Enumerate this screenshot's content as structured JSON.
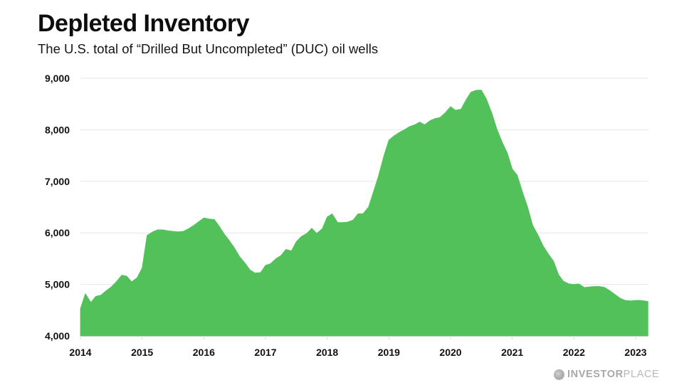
{
  "header": {
    "title": "Depleted Inventory",
    "subtitle": "The U.S. total of “Drilled But Uncompleted” (DUC) oil wells"
  },
  "watermark": {
    "icon": "globe-logo-icon",
    "brand_bold": "INVESTOR",
    "brand_light": "PLACE"
  },
  "colors": {
    "area_fill": "#52c15a",
    "gridline": "#e6e6e6",
    "text": "#111111"
  },
  "chart_data": {
    "type": "area",
    "title": "Depleted Inventory",
    "subtitle": "The U.S. total of “Drilled But Uncompleted” (DUC) oil wells",
    "xlabel": "",
    "ylabel": "",
    "xlim": [
      2014.0,
      2023.2
    ],
    "ylim": [
      4000,
      9000
    ],
    "grid": true,
    "legend": "none",
    "x_ticks": [
      2014,
      2015,
      2016,
      2017,
      2018,
      2019,
      2020,
      2021,
      2022,
      2023
    ],
    "x_tick_labels": [
      "2014",
      "2015",
      "2016",
      "2017",
      "2018",
      "2019",
      "2020",
      "2021",
      "2022",
      "2023"
    ],
    "y_ticks": [
      4000,
      5000,
      6000,
      7000,
      8000,
      9000
    ],
    "y_tick_labels": [
      "4,000",
      "5,000",
      "6,000",
      "7,000",
      "8,000",
      "9,000"
    ],
    "series": [
      {
        "name": "DUC oil wells",
        "x": [
          2014.0,
          2014.08,
          2014.17,
          2014.25,
          2014.33,
          2014.42,
          2014.5,
          2014.58,
          2014.67,
          2014.75,
          2014.83,
          2014.92,
          2015.0,
          2015.08,
          2015.17,
          2015.25,
          2015.33,
          2015.42,
          2015.5,
          2015.58,
          2015.67,
          2015.75,
          2015.83,
          2015.92,
          2016.0,
          2016.08,
          2016.17,
          2016.25,
          2016.33,
          2016.42,
          2016.5,
          2016.58,
          2016.67,
          2016.75,
          2016.83,
          2016.92,
          2017.0,
          2017.08,
          2017.17,
          2017.25,
          2017.33,
          2017.42,
          2017.5,
          2017.58,
          2017.67,
          2017.75,
          2017.83,
          2017.92,
          2018.0,
          2018.08,
          2018.17,
          2018.25,
          2018.33,
          2018.42,
          2018.5,
          2018.58,
          2018.67,
          2018.75,
          2018.83,
          2018.92,
          2019.0,
          2019.08,
          2019.17,
          2019.25,
          2019.33,
          2019.42,
          2019.5,
          2019.58,
          2019.67,
          2019.75,
          2019.83,
          2019.92,
          2020.0,
          2020.08,
          2020.17,
          2020.25,
          2020.33,
          2020.42,
          2020.5,
          2020.58,
          2020.67,
          2020.75,
          2020.83,
          2020.92,
          2021.0,
          2021.08,
          2021.17,
          2021.25,
          2021.33,
          2021.42,
          2021.5,
          2021.58,
          2021.67,
          2021.75,
          2021.83,
          2021.92,
          2022.0,
          2022.08,
          2022.17,
          2022.25,
          2022.33,
          2022.42,
          2022.5,
          2022.58,
          2022.67,
          2022.75,
          2022.83,
          2022.92,
          2023.0,
          2023.08,
          2023.2
        ],
        "values": [
          4530,
          4820,
          4650,
          4770,
          4790,
          4880,
          4950,
          5050,
          5180,
          5160,
          5050,
          5130,
          5320,
          5950,
          6020,
          6060,
          6060,
          6040,
          6030,
          6020,
          6030,
          6080,
          6140,
          6220,
          6290,
          6270,
          6260,
          6130,
          5980,
          5840,
          5700,
          5540,
          5410,
          5280,
          5220,
          5230,
          5370,
          5400,
          5500,
          5560,
          5680,
          5650,
          5830,
          5930,
          5990,
          6090,
          5990,
          6080,
          6310,
          6370,
          6200,
          6200,
          6210,
          6250,
          6370,
          6370,
          6500,
          6800,
          7100,
          7500,
          7800,
          7880,
          7950,
          8000,
          8060,
          8100,
          8150,
          8100,
          8180,
          8220,
          8240,
          8340,
          8450,
          8380,
          8400,
          8580,
          8730,
          8770,
          8770,
          8600,
          8320,
          8020,
          7780,
          7550,
          7240,
          7120,
          6780,
          6500,
          6150,
          5950,
          5750,
          5600,
          5450,
          5190,
          5060,
          5010,
          5000,
          5010,
          4940,
          4950,
          4960,
          4960,
          4940,
          4880,
          4800,
          4730,
          4690,
          4680,
          4690,
          4690,
          4670
        ]
      }
    ]
  }
}
